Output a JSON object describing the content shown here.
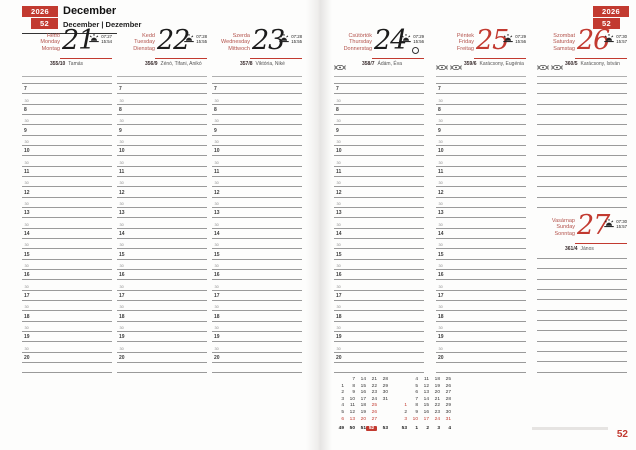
{
  "header": {
    "year": "2026",
    "week": "52",
    "month_title": "December",
    "month_subtitle": "December | Dezember"
  },
  "footer": {
    "page_number": "52"
  },
  "colors": {
    "accent_red": "#c23a30"
  },
  "icons": {
    "sun": "sun-icon",
    "full_moon": "full-moon-icon",
    "holiday": "holiday-candy-icon"
  },
  "days": [
    {
      "names": [
        "Hétfő",
        "Monday",
        "Montag"
      ],
      "num": "21",
      "red": false,
      "sunrise": "07:27",
      "sunset": "15:54",
      "doy": "355/10",
      "nameday": "Tamás",
      "holiday_icons": 0,
      "moon": false
    },
    {
      "names": [
        "Kedd",
        "Tuesday",
        "Dienstag"
      ],
      "num": "22",
      "red": false,
      "sunrise": "07:28",
      "sunset": "15:55",
      "doy": "356/9",
      "nameday": "Zénó, Tifani, Anikó",
      "holiday_icons": 0,
      "moon": false
    },
    {
      "names": [
        "Szerda",
        "Wednesday",
        "Mittwoch"
      ],
      "num": "23",
      "red": false,
      "sunrise": "07:28",
      "sunset": "15:55",
      "doy": "357/8",
      "nameday": "Viktória, Niké",
      "holiday_icons": 0,
      "moon": false
    },
    {
      "names": [
        "Csütörtök",
        "Thursday",
        "Donnerstag"
      ],
      "num": "24",
      "red": false,
      "sunrise": "07:29",
      "sunset": "15:56",
      "doy": "358/7",
      "nameday": "Ádám, Éva",
      "holiday_icons": 1,
      "moon": true
    },
    {
      "names": [
        "Péntek",
        "Friday",
        "Freitag"
      ],
      "num": "25",
      "red": true,
      "sunrise": "07:29",
      "sunset": "15:56",
      "doy": "359/6",
      "nameday": "Karácsony, Eugénia",
      "holiday_icons": 2,
      "moon": false
    },
    {
      "names": [
        "Szombat",
        "Saturday",
        "Samstag"
      ],
      "num": "26",
      "red": true,
      "sunrise": "07:30",
      "sunset": "15:57",
      "doy": "360/5",
      "nameday": "Karácsony, István",
      "holiday_icons": 2,
      "moon": false
    },
    {
      "names": [
        "Vasárnap",
        "Sunday",
        "Sonntag"
      ],
      "num": "27",
      "red": true,
      "sunrise": "07:30",
      "sunset": "15:57",
      "doy": "361/4",
      "nameday": "János",
      "holiday_icons": 0,
      "moon": false
    }
  ],
  "time_labels": [
    "7",
    "30",
    "8",
    "30",
    "9",
    "30",
    "10",
    "30",
    "11",
    "30",
    "12",
    "30",
    "13",
    "30",
    "14",
    "30",
    "15",
    "30",
    "16",
    "30",
    "17",
    "30",
    "18",
    "30",
    "19",
    "30",
    "20",
    ""
  ],
  "mini_calendar": {
    "months": [
      {
        "weeks": [
          "49",
          "50",
          "51",
          "52",
          "53"
        ],
        "current_week": "52",
        "rows": [
          [
            "",
            "7",
            "14",
            "21",
            "28"
          ],
          [
            "1",
            "8",
            "15",
            "22",
            "29"
          ],
          [
            "2",
            "9",
            "16",
            "23",
            "30"
          ],
          [
            "3",
            "10",
            "17",
            "24",
            "31"
          ],
          [
            "4",
            "11",
            "18",
            "25",
            ""
          ],
          [
            "5",
            "12",
            "19",
            "26",
            ""
          ],
          [
            "6",
            "13",
            "20",
            "27",
            ""
          ]
        ],
        "red": [
          "6",
          "13",
          "20",
          "25",
          "26",
          "27"
        ]
      },
      {
        "weeks": [
          "53",
          "1",
          "2",
          "3",
          "4"
        ],
        "rows": [
          [
            "",
            "4",
            "11",
            "18",
            "25"
          ],
          [
            "",
            "5",
            "12",
            "19",
            "26"
          ],
          [
            "",
            "6",
            "13",
            "20",
            "27"
          ],
          [
            "",
            "7",
            "14",
            "21",
            "28"
          ],
          [
            "1",
            "8",
            "15",
            "22",
            "29"
          ],
          [
            "2",
            "9",
            "16",
            "23",
            "30"
          ],
          [
            "3",
            "10",
            "17",
            "24",
            "31"
          ]
        ],
        "red": [
          "1",
          "3",
          "10",
          "17",
          "24",
          "31"
        ]
      }
    ]
  }
}
